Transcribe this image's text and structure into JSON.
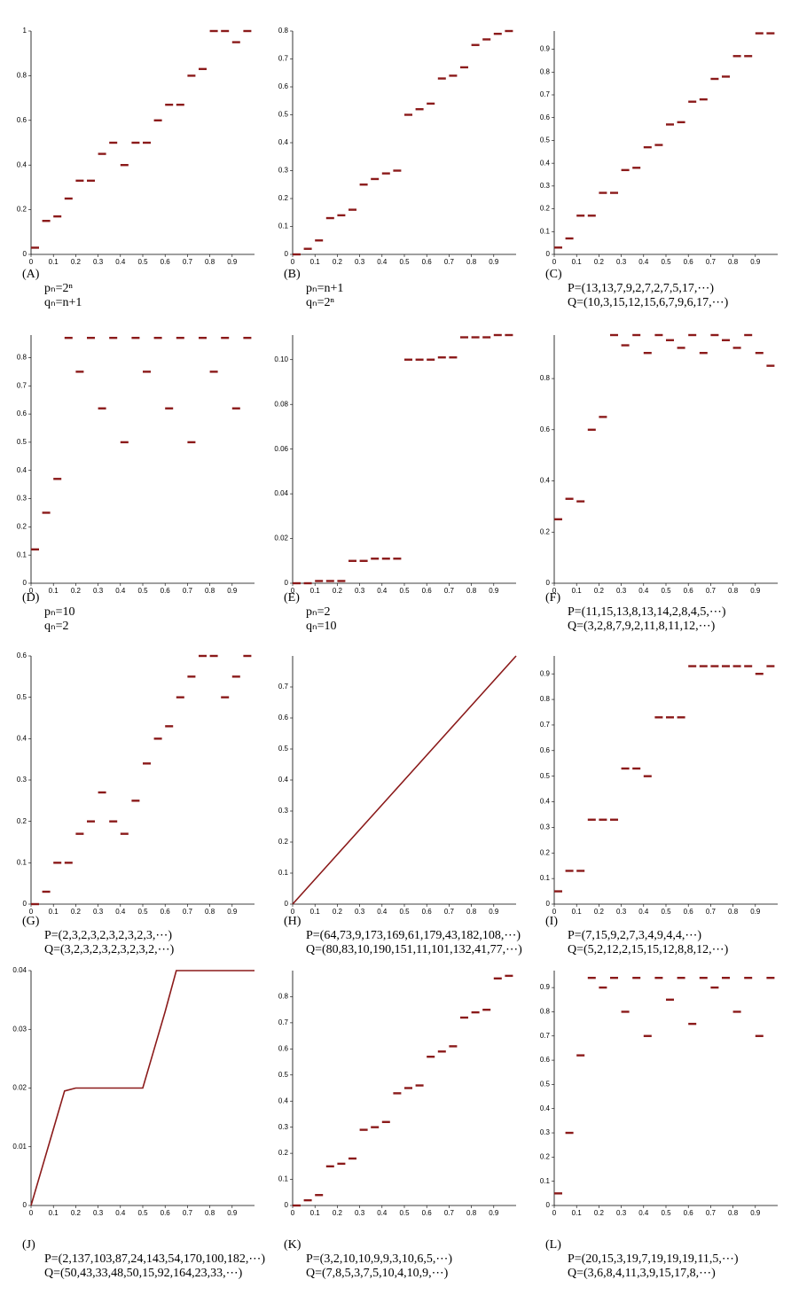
{
  "chart_data": [
    {
      "type": "scatter",
      "label": "(A)",
      "caption": [
        "pₙ=2ⁿ",
        "qₙ=n+1"
      ],
      "color": "#8b1a1a",
      "x": [
        0,
        0.05,
        0.1,
        0.15,
        0.2,
        0.25,
        0.3,
        0.35,
        0.4,
        0.45,
        0.5,
        0.55,
        0.6,
        0.65,
        0.7,
        0.75,
        0.8,
        0.85,
        0.9,
        0.95
      ],
      "values": [
        0.03,
        0.15,
        0.17,
        0.25,
        0.33,
        0.33,
        0.45,
        0.5,
        0.4,
        0.5,
        0.5,
        0.6,
        0.67,
        0.67,
        0.8,
        0.83,
        1,
        1,
        0.95,
        1
      ],
      "xlim": [
        0,
        1
      ],
      "ylim": [
        0,
        1
      ],
      "xticks": [
        0,
        0.1,
        0.2,
        0.3,
        0.4,
        0.5,
        0.6,
        0.7,
        0.8,
        0.9
      ],
      "yticks": [
        0,
        0.2,
        0.4,
        0.6,
        0.8,
        1
      ]
    },
    {
      "type": "scatter",
      "label": "(B)",
      "caption": [
        "pₙ=n+1",
        "qₙ=2ⁿ"
      ],
      "color": "#8b1a1a",
      "x": [
        0,
        0.05,
        0.1,
        0.15,
        0.2,
        0.25,
        0.3,
        0.35,
        0.4,
        0.45,
        0.5,
        0.55,
        0.6,
        0.65,
        0.7,
        0.75,
        0.8,
        0.85,
        0.9,
        0.95
      ],
      "values": [
        0,
        0.02,
        0.05,
        0.13,
        0.14,
        0.16,
        0.25,
        0.27,
        0.29,
        0.3,
        0.5,
        0.52,
        0.54,
        0.63,
        0.64,
        0.67,
        0.75,
        0.77,
        0.79,
        0.8
      ],
      "xlim": [
        0,
        1
      ],
      "ylim": [
        0,
        0.8
      ],
      "xticks": [
        0,
        0.1,
        0.2,
        0.3,
        0.4,
        0.5,
        0.6,
        0.7,
        0.8,
        0.9
      ],
      "yticks": [
        0,
        0.1,
        0.2,
        0.3,
        0.4,
        0.5,
        0.6,
        0.7,
        0.8
      ]
    },
    {
      "type": "scatter",
      "label": "(C)",
      "caption": [
        "P=(13,13,7,9,2,7,2,7,5,17,⋯)",
        "Q=(10,3,15,12,15,6,7,9,6,17,⋯)"
      ],
      "color": "#8b1a1a",
      "x": [
        0,
        0.05,
        0.1,
        0.15,
        0.2,
        0.25,
        0.3,
        0.35,
        0.4,
        0.45,
        0.5,
        0.55,
        0.6,
        0.65,
        0.7,
        0.75,
        0.8,
        0.85,
        0.9,
        0.95
      ],
      "values": [
        0.03,
        0.07,
        0.17,
        0.17,
        0.27,
        0.27,
        0.37,
        0.38,
        0.47,
        0.48,
        0.57,
        0.58,
        0.67,
        0.68,
        0.77,
        0.78,
        0.87,
        0.87,
        0.97,
        0.97
      ],
      "xlim": [
        0,
        1
      ],
      "ylim": [
        0,
        0.98
      ],
      "xticks": [
        0,
        0.1,
        0.2,
        0.3,
        0.4,
        0.5,
        0.6,
        0.7,
        0.8,
        0.9
      ],
      "yticks": [
        0,
        0.1,
        0.2,
        0.3,
        0.4,
        0.5,
        0.6,
        0.7,
        0.8,
        0.9
      ]
    },
    {
      "type": "scatter",
      "label": "(D)",
      "caption": [
        "pₙ=10",
        "qₙ=2"
      ],
      "color": "#8b1a1a",
      "x": [
        0,
        0.05,
        0.1,
        0.15,
        0.2,
        0.25,
        0.3,
        0.35,
        0.4,
        0.45,
        0.5,
        0.55,
        0.6,
        0.65,
        0.7,
        0.75,
        0.8,
        0.85,
        0.9,
        0.95
      ],
      "values": [
        0.12,
        0.25,
        0.37,
        0.87,
        0.75,
        0.87,
        0.62,
        0.87,
        0.5,
        0.87,
        0.75,
        0.87,
        0.62,
        0.87,
        0.5,
        0.87,
        0.75,
        0.87,
        0.62,
        0.87
      ],
      "xlim": [
        0,
        1
      ],
      "ylim": [
        0,
        0.88
      ],
      "xticks": [
        0,
        0.1,
        0.2,
        0.3,
        0.4,
        0.5,
        0.6,
        0.7,
        0.8,
        0.9
      ],
      "yticks": [
        0,
        0.1,
        0.2,
        0.3,
        0.4,
        0.5,
        0.6,
        0.7,
        0.8
      ]
    },
    {
      "type": "scatter",
      "label": "(E)",
      "caption": [
        "pₙ=2",
        "qₙ=10"
      ],
      "color": "#8b1a1a",
      "x": [
        0,
        0.05,
        0.1,
        0.15,
        0.2,
        0.25,
        0.3,
        0.35,
        0.4,
        0.45,
        0.5,
        0.55,
        0.6,
        0.65,
        0.7,
        0.75,
        0.8,
        0.85,
        0.9,
        0.95
      ],
      "values": [
        0,
        0,
        0.001,
        0.001,
        0.001,
        0.01,
        0.01,
        0.011,
        0.011,
        0.011,
        0.1,
        0.1,
        0.1,
        0.101,
        0.101,
        0.11,
        0.11,
        0.11,
        0.111,
        0.111
      ],
      "xlim": [
        0,
        1
      ],
      "ylim": [
        0,
        0.111
      ],
      "xticks": [
        0,
        0.1,
        0.2,
        0.3,
        0.4,
        0.5,
        0.6,
        0.7,
        0.8,
        0.9
      ],
      "yticks": [
        0,
        0.02,
        0.04,
        0.06,
        0.08,
        {
          "value": 0.1,
          "label": "0.10"
        }
      ]
    },
    {
      "type": "scatter",
      "label": "(F)",
      "caption": [
        "P=(11,15,13,8,13,14,2,8,4,5,⋯)",
        "Q=(3,2,8,7,9,2,11,8,11,12,⋯)"
      ],
      "color": "#8b1a1a",
      "x": [
        0,
        0.05,
        0.1,
        0.15,
        0.2,
        0.25,
        0.3,
        0.35,
        0.4,
        0.45,
        0.5,
        0.55,
        0.6,
        0.65,
        0.7,
        0.75,
        0.8,
        0.85,
        0.9,
        0.95
      ],
      "values": [
        0.25,
        0.33,
        0.32,
        0.6,
        0.65,
        0.97,
        0.93,
        0.97,
        0.9,
        0.97,
        0.95,
        0.92,
        0.97,
        0.9,
        0.97,
        0.95,
        0.92,
        0.97,
        0.9,
        0.85
      ],
      "xlim": [
        0,
        1
      ],
      "ylim": [
        0,
        0.97
      ],
      "xticks": [
        0,
        0.1,
        0.2,
        0.3,
        0.4,
        0.5,
        0.6,
        0.7,
        0.8,
        0.9
      ],
      "yticks": [
        0,
        0.2,
        0.4,
        0.6,
        0.8
      ]
    },
    {
      "type": "scatter",
      "label": "(G)",
      "caption": [
        "P=(2,3,2,3,2,3,2,3,2,3,⋯)",
        "Q=(3,2,3,2,3,2,3,2,3,2,⋯)"
      ],
      "color": "#8b1a1a",
      "x": [
        0,
        0.05,
        0.1,
        0.15,
        0.2,
        0.25,
        0.3,
        0.35,
        0.4,
        0.45,
        0.5,
        0.55,
        0.6,
        0.65,
        0.7,
        0.75,
        0.8,
        0.85,
        0.9,
        0.95
      ],
      "values": [
        0,
        0.03,
        0.1,
        0.1,
        0.17,
        0.2,
        0.27,
        0.2,
        0.17,
        0.25,
        0.34,
        0.4,
        0.43,
        0.5,
        0.55,
        0.6,
        0.6,
        0.5,
        0.55,
        0.6
      ],
      "xlim": [
        0,
        1
      ],
      "ylim": [
        0,
        0.6
      ],
      "xticks": [
        0,
        0.1,
        0.2,
        0.3,
        0.4,
        0.5,
        0.6,
        0.7,
        0.8,
        0.9
      ],
      "yticks": [
        0,
        0.1,
        0.2,
        0.3,
        0.4,
        0.5,
        0.6
      ]
    },
    {
      "type": "line",
      "label": "(H)",
      "caption": [
        "P=(64,73,9,173,169,61,179,43,182,108,⋯)",
        "Q=(80,83,10,190,151,11,101,132,41,77,⋯)"
      ],
      "color": "#8b1a1a",
      "x": [
        0,
        0.05,
        0.1,
        0.15,
        0.2,
        0.25,
        0.3,
        0.35,
        0.4,
        0.45,
        0.5,
        0.55,
        0.6,
        0.65,
        0.7,
        0.75,
        0.8,
        0.85,
        0.9,
        0.95,
        1
      ],
      "values": [
        0,
        0.04,
        0.08,
        0.12,
        0.16,
        0.2,
        0.24,
        0.28,
        0.32,
        0.36,
        0.4,
        0.44,
        0.48,
        0.52,
        0.56,
        0.6,
        0.64,
        0.68,
        0.72,
        0.76,
        0.8
      ],
      "xlim": [
        0,
        1
      ],
      "ylim": [
        0,
        0.8
      ],
      "xticks": [
        0,
        0.1,
        0.2,
        0.3,
        0.4,
        0.5,
        0.6,
        0.7,
        0.8,
        0.9
      ],
      "yticks": [
        0,
        0.1,
        0.2,
        0.3,
        0.4,
        0.5,
        0.6,
        0.7
      ]
    },
    {
      "type": "scatter",
      "label": "(I)",
      "caption": [
        "P=(7,15,9,2,7,3,4,9,4,4,⋯)",
        "Q=(5,2,12,2,15,15,12,8,8,12,⋯)"
      ],
      "color": "#8b1a1a",
      "x": [
        0,
        0.05,
        0.1,
        0.15,
        0.2,
        0.25,
        0.3,
        0.35,
        0.4,
        0.45,
        0.5,
        0.55,
        0.6,
        0.65,
        0.7,
        0.75,
        0.8,
        0.85,
        0.9,
        0.95
      ],
      "values": [
        0.05,
        0.13,
        0.13,
        0.33,
        0.33,
        0.33,
        0.53,
        0.53,
        0.5,
        0.73,
        0.73,
        0.73,
        0.93,
        0.93,
        0.93,
        0.93,
        0.93,
        0.93,
        0.9,
        0.93
      ],
      "xlim": [
        0,
        1
      ],
      "ylim": [
        0,
        0.97
      ],
      "xticks": [
        0,
        0.1,
        0.2,
        0.3,
        0.4,
        0.5,
        0.6,
        0.7,
        0.8,
        0.9
      ],
      "yticks": [
        0,
        0.1,
        0.2,
        0.3,
        0.4,
        0.5,
        0.6,
        0.7,
        0.8,
        0.9
      ]
    },
    {
      "type": "line",
      "label": "(J)",
      "caption": [
        "P=(2,137,103,87,24,143,54,170,100,182,⋯)",
        "Q=(50,43,33,48,50,15,92,164,23,33,⋯)"
      ],
      "color": "#8b1a1a",
      "x": [
        0,
        0.05,
        0.1,
        0.15,
        0.2,
        0.25,
        0.3,
        0.35,
        0.4,
        0.45,
        0.5,
        0.55,
        0.6,
        0.65,
        0.7,
        0.75,
        0.8,
        0.85,
        0.9,
        0.95,
        1
      ],
      "values": [
        0,
        0.0065,
        0.013,
        0.0195,
        0.02,
        0.02,
        0.02,
        0.02,
        0.02,
        0.02,
        0.02,
        0.0265,
        0.033,
        0.04,
        0.04,
        0.04,
        0.04,
        0.04,
        0.04,
        0.04,
        0.04
      ],
      "xlim": [
        0,
        1
      ],
      "ylim": [
        0,
        0.04
      ],
      "xticks": [
        0,
        0.1,
        0.2,
        0.3,
        0.4,
        0.5,
        0.6,
        0.7,
        0.8,
        0.9
      ],
      "yticks": [
        0,
        0.01,
        0.02,
        0.03,
        0.04
      ]
    },
    {
      "type": "scatter",
      "label": "(K)",
      "caption": [
        "P=(3,2,10,10,9,9,3,10,6,5,⋯)",
        "Q=(7,8,5,3,7,5,10,4,10,9,⋯)"
      ],
      "color": "#8b1a1a",
      "x": [
        0,
        0.05,
        0.1,
        0.15,
        0.2,
        0.25,
        0.3,
        0.35,
        0.4,
        0.45,
        0.5,
        0.55,
        0.6,
        0.65,
        0.7,
        0.75,
        0.8,
        0.85,
        0.9,
        0.95
      ],
      "values": [
        0,
        0.02,
        0.04,
        0.15,
        0.16,
        0.18,
        0.29,
        0.3,
        0.32,
        0.43,
        0.45,
        0.46,
        0.57,
        0.59,
        0.61,
        0.72,
        0.74,
        0.75,
        0.87,
        0.88
      ],
      "xlim": [
        0,
        1
      ],
      "ylim": [
        0,
        0.9
      ],
      "xticks": [
        0,
        0.1,
        0.2,
        0.3,
        0.4,
        0.5,
        0.6,
        0.7,
        0.8,
        0.9
      ],
      "yticks": [
        0,
        0.1,
        0.2,
        0.3,
        0.4,
        0.5,
        0.6,
        0.7,
        0.8
      ]
    },
    {
      "type": "scatter",
      "label": "(L)",
      "caption": [
        "P=(20,15,3,19,7,19,19,19,11,5,⋯)",
        "Q=(3,6,8,4,11,3,9,15,17,8,⋯)"
      ],
      "color": "#8b1a1a",
      "x": [
        0,
        0.05,
        0.1,
        0.15,
        0.2,
        0.25,
        0.3,
        0.35,
        0.4,
        0.45,
        0.5,
        0.55,
        0.6,
        0.65,
        0.7,
        0.75,
        0.8,
        0.85,
        0.9,
        0.95
      ],
      "values": [
        0.05,
        0.3,
        0.62,
        0.94,
        0.9,
        0.94,
        0.8,
        0.94,
        0.7,
        0.94,
        0.85,
        0.94,
        0.75,
        0.94,
        0.9,
        0.94,
        0.8,
        0.94,
        0.7,
        0.94
      ],
      "xlim": [
        0,
        1
      ],
      "ylim": [
        0,
        0.97
      ],
      "xticks": [
        0,
        0.1,
        0.2,
        0.3,
        0.4,
        0.5,
        0.6,
        0.7,
        0.8,
        0.9
      ],
      "yticks": [
        0,
        0.1,
        0.2,
        0.3,
        0.4,
        0.5,
        0.6,
        0.7,
        0.8,
        0.9
      ]
    }
  ]
}
